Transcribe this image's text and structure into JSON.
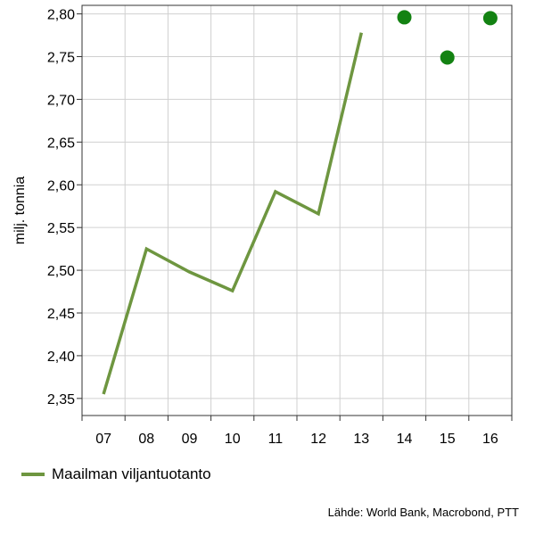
{
  "chart_data": {
    "type": "line",
    "title": "",
    "ylabel": "milj. tonnia",
    "xlabel": "",
    "categories": [
      "07",
      "08",
      "09",
      "10",
      "11",
      "12",
      "13",
      "14",
      "15",
      "16"
    ],
    "ylim": [
      2.33,
      2.81
    ],
    "yticks": [
      "2,35",
      "2,40",
      "2,45",
      "2,50",
      "2,55",
      "2,60",
      "2,65",
      "2,70",
      "2,75",
      "2,80"
    ],
    "grid": true,
    "series": [
      {
        "name": "Maailman viljantuotanto",
        "style": "line",
        "color": "#6e9640",
        "values": [
          2.355,
          2.525,
          2.498,
          2.476,
          2.592,
          2.566,
          2.778,
          null,
          null,
          null
        ]
      },
      {
        "style": "points",
        "color": "#138212",
        "values": [
          null,
          null,
          null,
          null,
          null,
          null,
          null,
          2.796,
          2.749,
          2.795
        ]
      }
    ]
  },
  "legend": {
    "label": "Maailman viljantuotanto",
    "color": "#6e9640"
  },
  "source": "Lähde: World Bank, Macrobond, PTT"
}
